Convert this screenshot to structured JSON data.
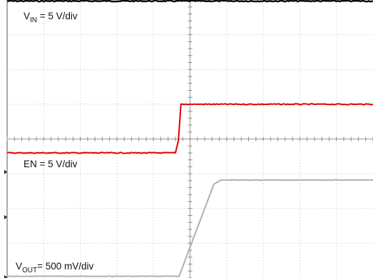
{
  "chart_data": {
    "type": "line",
    "grid": true,
    "x_divisions": 10,
    "y_divisions": 8,
    "series": [
      {
        "label_main": "V",
        "label_sub": "IN",
        "label_rest": " = 5 V/div",
        "color": "#000000",
        "x": [
          0,
          10
        ],
        "y": [
          7.97,
          7.97
        ]
      },
      {
        "label_main": "EN = 5 V/div",
        "label_sub": "",
        "label_rest": "",
        "color": "#e00000",
        "x": [
          0,
          4.6,
          4.68,
          4.75,
          10
        ],
        "y": [
          3.6,
          3.6,
          3.95,
          5.0,
          5.0
        ]
      },
      {
        "label_main": "V",
        "label_sub": "OUT",
        "label_rest": "= 500 mV/div",
        "color": "#b0b0b0",
        "x": [
          0,
          4.7,
          5.65,
          5.85,
          10
        ],
        "y": [
          0.05,
          0.05,
          2.7,
          2.82,
          2.82
        ]
      }
    ]
  }
}
